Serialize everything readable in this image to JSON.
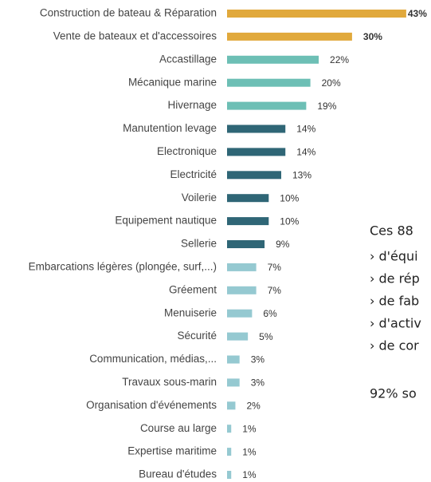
{
  "chart_data": {
    "type": "barh",
    "categories": [
      "Construction de bateau & Réparation",
      "Vente de bateaux et d'accessoires",
      "Accastillage",
      "Mécanique marine",
      "Hivernage",
      "Manutention levage",
      "Electronique",
      "Electricité",
      "Voilerie",
      "Equipement nautique",
      "Sellerie",
      "Embarcations légères (plongée, surf,...)",
      "Gréement",
      "Menuiserie",
      "Sécurité",
      "Communication, médias,...",
      "Travaux sous-marin",
      "Organisation d'événements",
      "Course au large",
      "Expertise maritime",
      "Bureau d'études"
    ],
    "values": [
      43,
      30,
      22,
      20,
      19,
      14,
      14,
      13,
      10,
      10,
      9,
      7,
      7,
      6,
      5,
      3,
      3,
      2,
      1,
      1,
      1
    ],
    "value_labels": [
      "43%",
      "30%",
      "22%",
      "20%",
      "19%",
      "14%",
      "14%",
      "13%",
      "10%",
      "10%",
      "9%",
      "7%",
      "7%",
      "6%",
      "5%",
      "3%",
      "3%",
      "2%",
      "1%",
      "1%",
      "1%"
    ],
    "colors": [
      "#e1a93c",
      "#e1a93c",
      "#6dbfb5",
      "#6dbfb5",
      "#6dbfb5",
      "#2f6676",
      "#2f6676",
      "#2f6676",
      "#2f6676",
      "#2f6676",
      "#2f6676",
      "#95c9d1",
      "#95c9d1",
      "#95c9d1",
      "#95c9d1",
      "#95c9d1",
      "#95c9d1",
      "#95c9d1",
      "#95c9d1",
      "#95c9d1",
      "#95c9d1"
    ],
    "annotations": [
      "Ces 88",
      "› d'équi",
      "› de rép",
      "› de fab",
      "› d'activ",
      "› de cor",
      "92% so"
    ]
  }
}
